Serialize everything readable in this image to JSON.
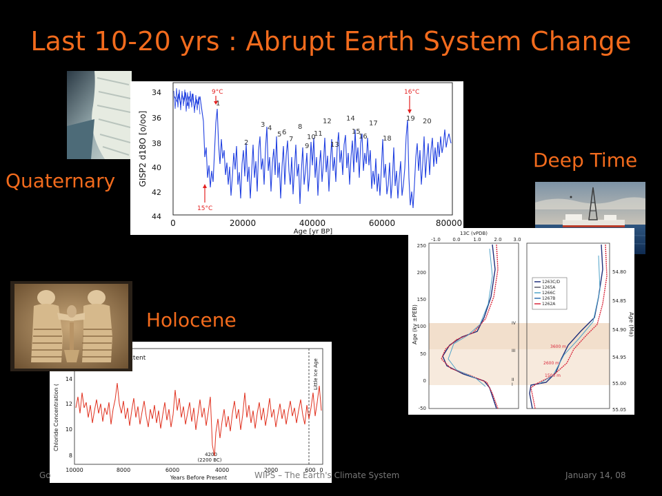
{
  "slide": {
    "title": "Last 10-20 yrs : Abrupt Earth System Change",
    "labels": {
      "quaternary": "Quaternary",
      "deep_time": "Deep Time",
      "holocene": "Holocene"
    },
    "footer": {
      "left": "Go",
      "center": "WIPS – The Earth's Climate System",
      "right": "January 14, 08"
    }
  },
  "colors": {
    "background": "#000000",
    "title": "#f26b1d",
    "series_blue": "#1f3fe0",
    "series_red": "#e0301e",
    "marker_red": "#e41f1f"
  },
  "gisp2_chart": {
    "ylabel": "GISP2 d18O [o/oo]",
    "xlabel": "Age [yr BP]",
    "y_ticks": [
      "34",
      "36",
      "38",
      "40",
      "42",
      "44"
    ],
    "x_ticks": [
      "0",
      "20000",
      "40000",
      "60000",
      "80000"
    ],
    "annotations": {
      "left_top": "9°C",
      "left_bottom": "15°C",
      "right_top": "16°C"
    },
    "event_numbers": [
      "1",
      "2",
      "3",
      "4",
      "5",
      "6",
      "7",
      "8",
      "9",
      "10",
      "11",
      "12",
      "13",
      "14",
      "15",
      "16",
      "17",
      "18",
      "19",
      "20"
    ]
  },
  "chloride_chart": {
    "title_partial": "ea Ice Extent",
    "ylabel": "Chloride Concentration (",
    "xlabel": "Years Before Present",
    "y_ticks": [
      "8",
      "10",
      "12",
      "14"
    ],
    "x_ticks": [
      "10000",
      "8000",
      "6000",
      "4000",
      "2000",
      "600",
      "0"
    ],
    "annotation_4200": "4200",
    "annotation_2200": "(2200 BC)",
    "little_ice_age": "Little Ice Age"
  },
  "deep_time_chart": {
    "top_label": "13C (vPDB)",
    "top_ticks": [
      "-1.0",
      "0.0",
      "1.0",
      "2.0",
      "3.0"
    ],
    "left_ylabel": "Age (ky ±PEB)",
    "right_ylabel": "Age (Ma)",
    "left_ticks": [
      "250",
      "200",
      "150",
      "100",
      "50",
      "0",
      "-50"
    ],
    "right_ticks": [
      "54.80",
      "54.85",
      "54.90",
      "54.95",
      "55.00",
      "55.05"
    ],
    "legend": [
      "1263C/D",
      "1265A",
      "1266C",
      "1267B",
      "1262A"
    ],
    "roman": [
      "IV",
      "III",
      "II",
      "I"
    ],
    "depths": [
      "3600 m",
      "2600 m",
      "1500 m"
    ]
  },
  "photos": {
    "ice_core": "ice-core-photo",
    "drill_ship": "drill-ship-photo",
    "relief": "sumerian-relief-photo"
  }
}
